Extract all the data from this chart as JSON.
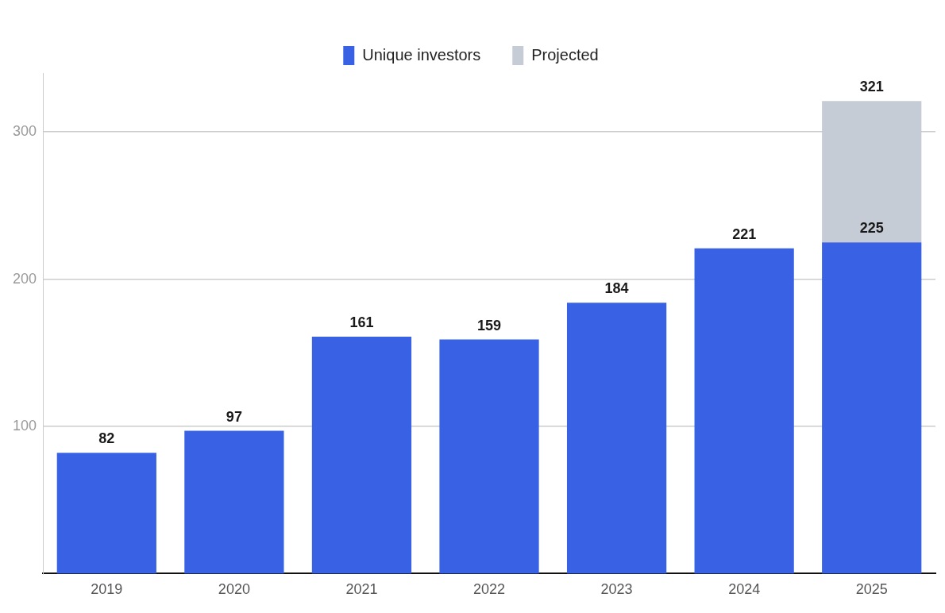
{
  "chart_data": {
    "type": "bar",
    "stacked": true,
    "categories": [
      "2019",
      "2020",
      "2021",
      "2022",
      "2023",
      "2024",
      "2025"
    ],
    "series": [
      {
        "name": "Unique investors",
        "color": "#3862e3",
        "values": [
          82,
          97,
          161,
          159,
          184,
          221,
          225
        ],
        "value_labels": [
          "82",
          "97",
          "161",
          "159",
          "184",
          "221",
          "225"
        ]
      },
      {
        "name": "Projected",
        "color": "#c6ccd6",
        "values": [
          null,
          null,
          null,
          null,
          null,
          null,
          96
        ]
      }
    ],
    "totals": [
      null,
      null,
      null,
      null,
      null,
      null,
      "321"
    ],
    "ylim": [
      0,
      340
    ],
    "yticks": [
      100,
      200,
      300
    ],
    "grid": "y",
    "legend": "top"
  }
}
